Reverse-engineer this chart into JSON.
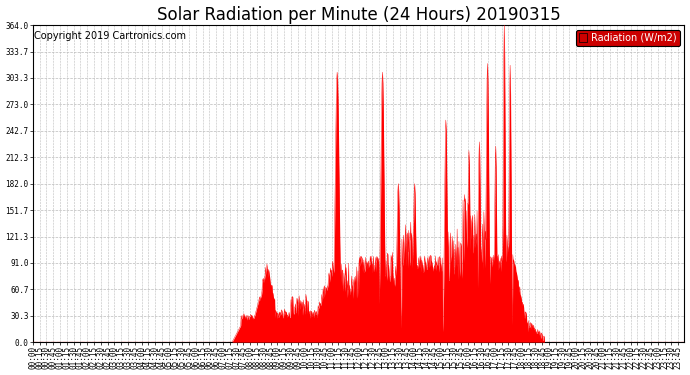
{
  "title": "Solar Radiation per Minute (24 Hours) 20190315",
  "copyright_text": "Copyright 2019 Cartronics.com",
  "legend_label": "Radiation (W/m2)",
  "bg_color": "#ffffff",
  "plot_bg_color": "#ffffff",
  "line_color": "#ff0000",
  "fill_color": "#ff0000",
  "grid_color": "#bbbbbb",
  "legend_bg": "#cc0000",
  "legend_text_color": "#ffffff",
  "ylim": [
    0.0,
    364.0
  ],
  "yticks": [
    0.0,
    30.3,
    60.7,
    91.0,
    121.3,
    151.7,
    182.0,
    212.3,
    242.7,
    273.0,
    303.3,
    333.7,
    364.0
  ],
  "title_fontsize": 12,
  "tick_fontsize": 5.5,
  "copyright_fontsize": 7
}
